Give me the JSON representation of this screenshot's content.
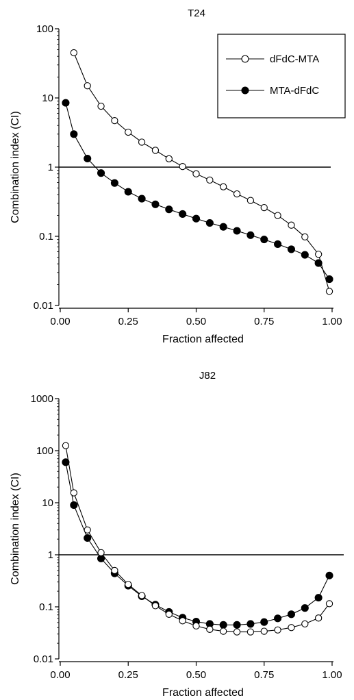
{
  "chart_data": [
    {
      "type": "line",
      "title": "T24",
      "xlabel": "Fraction affected",
      "ylabel": "Combination index (CI)",
      "xlim": [
        0,
        1
      ],
      "ylim": [
        0.01,
        100
      ],
      "yscale": "log",
      "xticks": [
        "0.00",
        "0.25",
        "0.50",
        "0.75",
        "1.00"
      ],
      "yticks": [
        "0.01",
        "0.1",
        "1",
        "10",
        "100"
      ],
      "reference_line": 1,
      "legend": {
        "position": "top-right",
        "boxed": true
      },
      "series": [
        {
          "name": "dFdC-MTA",
          "marker": "open-circle",
          "x": [
            0.05,
            0.1,
            0.15,
            0.2,
            0.25,
            0.3,
            0.35,
            0.4,
            0.45,
            0.5,
            0.55,
            0.6,
            0.65,
            0.7,
            0.75,
            0.8,
            0.85,
            0.9,
            0.95,
            0.99
          ],
          "values": [
            45,
            15,
            7.6,
            4.7,
            3.2,
            2.3,
            1.75,
            1.32,
            1.02,
            0.8,
            0.65,
            0.52,
            0.41,
            0.33,
            0.26,
            0.2,
            0.145,
            0.098,
            0.055,
            0.016
          ]
        },
        {
          "name": "MTA-dFdC",
          "marker": "filled-circle",
          "x": [
            0.02,
            0.05,
            0.1,
            0.15,
            0.2,
            0.25,
            0.3,
            0.35,
            0.4,
            0.45,
            0.5,
            0.55,
            0.6,
            0.65,
            0.7,
            0.75,
            0.8,
            0.85,
            0.9,
            0.95,
            0.99
          ],
          "values": [
            8.5,
            3.0,
            1.33,
            0.82,
            0.59,
            0.44,
            0.35,
            0.29,
            0.245,
            0.21,
            0.18,
            0.156,
            0.137,
            0.12,
            0.104,
            0.09,
            0.077,
            0.065,
            0.054,
            0.041,
            0.024
          ]
        }
      ]
    },
    {
      "type": "line",
      "title": "J82",
      "xlabel": "Fraction affected",
      "ylabel": "Combination index (CI)",
      "xlim": [
        0,
        1
      ],
      "ylim": [
        0.01,
        1000
      ],
      "yscale": "log",
      "xticks": [
        "0.00",
        "0.25",
        "0.50",
        "0.75",
        "1.00"
      ],
      "yticks": [
        "0.01",
        "0.1",
        "1",
        "10",
        "100",
        "1000"
      ],
      "reference_line": 1,
      "series": [
        {
          "name": "dFdC-MTA",
          "marker": "open-circle",
          "x": [
            0.02,
            0.05,
            0.1,
            0.15,
            0.2,
            0.25,
            0.3,
            0.35,
            0.4,
            0.45,
            0.5,
            0.55,
            0.6,
            0.65,
            0.7,
            0.75,
            0.8,
            0.85,
            0.9,
            0.95,
            0.99
          ],
          "values": [
            125,
            15.5,
            3.0,
            1.1,
            0.5,
            0.27,
            0.165,
            0.105,
            0.072,
            0.054,
            0.043,
            0.037,
            0.034,
            0.033,
            0.033,
            0.034,
            0.036,
            0.04,
            0.047,
            0.061,
            0.115
          ]
        },
        {
          "name": "MTA-dFdC",
          "marker": "filled-circle",
          "x": [
            0.02,
            0.05,
            0.1,
            0.15,
            0.2,
            0.25,
            0.3,
            0.35,
            0.4,
            0.45,
            0.5,
            0.55,
            0.6,
            0.65,
            0.7,
            0.75,
            0.8,
            0.85,
            0.9,
            0.95,
            0.99
          ],
          "values": [
            60,
            9.0,
            2.1,
            0.85,
            0.44,
            0.255,
            0.16,
            0.11,
            0.08,
            0.062,
            0.052,
            0.047,
            0.045,
            0.045,
            0.047,
            0.051,
            0.06,
            0.072,
            0.095,
            0.15,
            0.4
          ]
        }
      ]
    }
  ]
}
